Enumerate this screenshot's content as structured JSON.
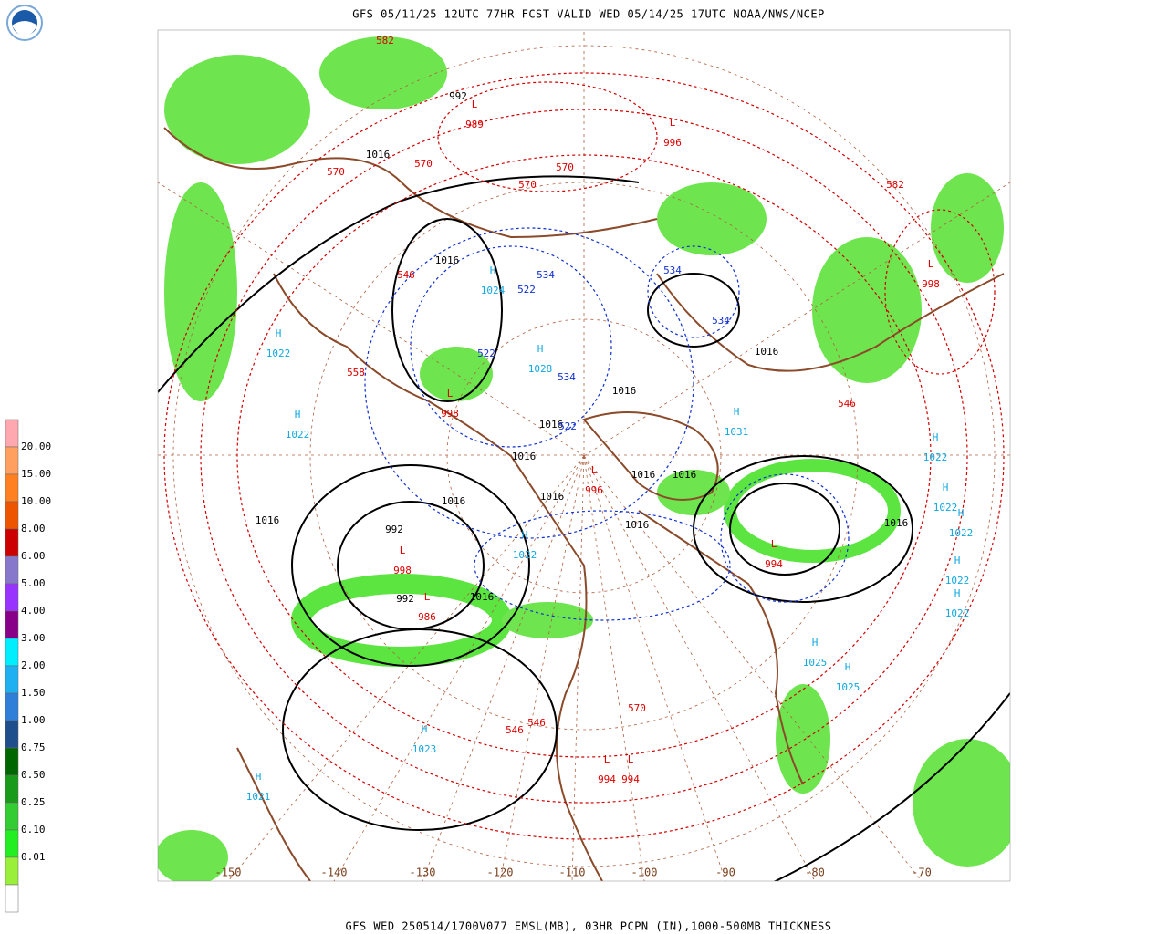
{
  "header": {
    "title": "GFS 05/11/25 12UTC 77HR FCST VALID WED 05/14/25 17UTC NOAA/NWS/NCEP"
  },
  "footer": {
    "caption": "GFS WED 250514/1700V077 EMSL(MB), 03HR PCPN (IN),1000-500MB THICKNESS"
  },
  "legend": {
    "labels": [
      "20.00",
      "15.00",
      "10.00",
      "8.00",
      "6.00",
      "5.00",
      "4.00",
      "3.00",
      "2.00",
      "1.50",
      "1.00",
      "0.75",
      "0.50",
      "0.25",
      "0.10",
      "0.01"
    ],
    "colors": [
      "#ffa8b0",
      "#ffa060",
      "#ff8020",
      "#ee5500",
      "#cc0000",
      "#8878cc",
      "#9933ff",
      "#880088",
      "#00eeff",
      "#1eb0f0",
      "#2f7fd9",
      "#1f4e8c",
      "#006600",
      "#1a9a1a",
      "#33cc33",
      "#22ee22",
      "#9aef3a",
      "#ffffff"
    ]
  },
  "map": {
    "longitudes": [
      -150,
      -140,
      -130,
      -120,
      -110,
      -100,
      -90,
      -80,
      -70
    ],
    "centers": [
      {
        "letter": "H",
        "value": "1024"
      },
      {
        "letter": "H",
        "value": "1022"
      },
      {
        "letter": "H",
        "value": "1022"
      },
      {
        "letter": "H",
        "value": "1028"
      },
      {
        "letter": "H",
        "value": "1031"
      },
      {
        "letter": "H",
        "value": "1022"
      },
      {
        "letter": "H",
        "value": "1022"
      },
      {
        "letter": "H",
        "value": "1022"
      },
      {
        "letter": "H",
        "value": "1022"
      },
      {
        "letter": "H",
        "value": "1022"
      },
      {
        "letter": "H",
        "value": "1022"
      },
      {
        "letter": "H",
        "value": "1025"
      },
      {
        "letter": "H",
        "value": "1025"
      },
      {
        "letter": "H",
        "value": "1023"
      },
      {
        "letter": "H",
        "value": "1021"
      },
      {
        "letter": "L",
        "value": "998"
      },
      {
        "letter": "L",
        "value": "996"
      },
      {
        "letter": "L",
        "value": "994"
      },
      {
        "letter": "L",
        "value": "996"
      },
      {
        "letter": "L",
        "value": "998"
      },
      {
        "letter": "L",
        "value": "989"
      },
      {
        "letter": "L",
        "value": "986"
      },
      {
        "letter": "L",
        "value": "994"
      },
      {
        "letter": "L",
        "value": "994"
      },
      {
        "letter": "L",
        "value": "998"
      }
    ],
    "isobar_labels": [
      "1016",
      "1016",
      "1016",
      "1016",
      "1016",
      "1016",
      "1016",
      "1016",
      "1016",
      "1016",
      "1016",
      "1016",
      "992",
      "992",
      "992",
      "1016",
      "1016"
    ],
    "thickness_labels": [
      "570",
      "570",
      "570",
      "570",
      "546",
      "558",
      "546",
      "582",
      "582",
      "546",
      "546",
      "570",
      "522",
      "522",
      "534",
      "534",
      "522",
      "534",
      "534"
    ]
  }
}
